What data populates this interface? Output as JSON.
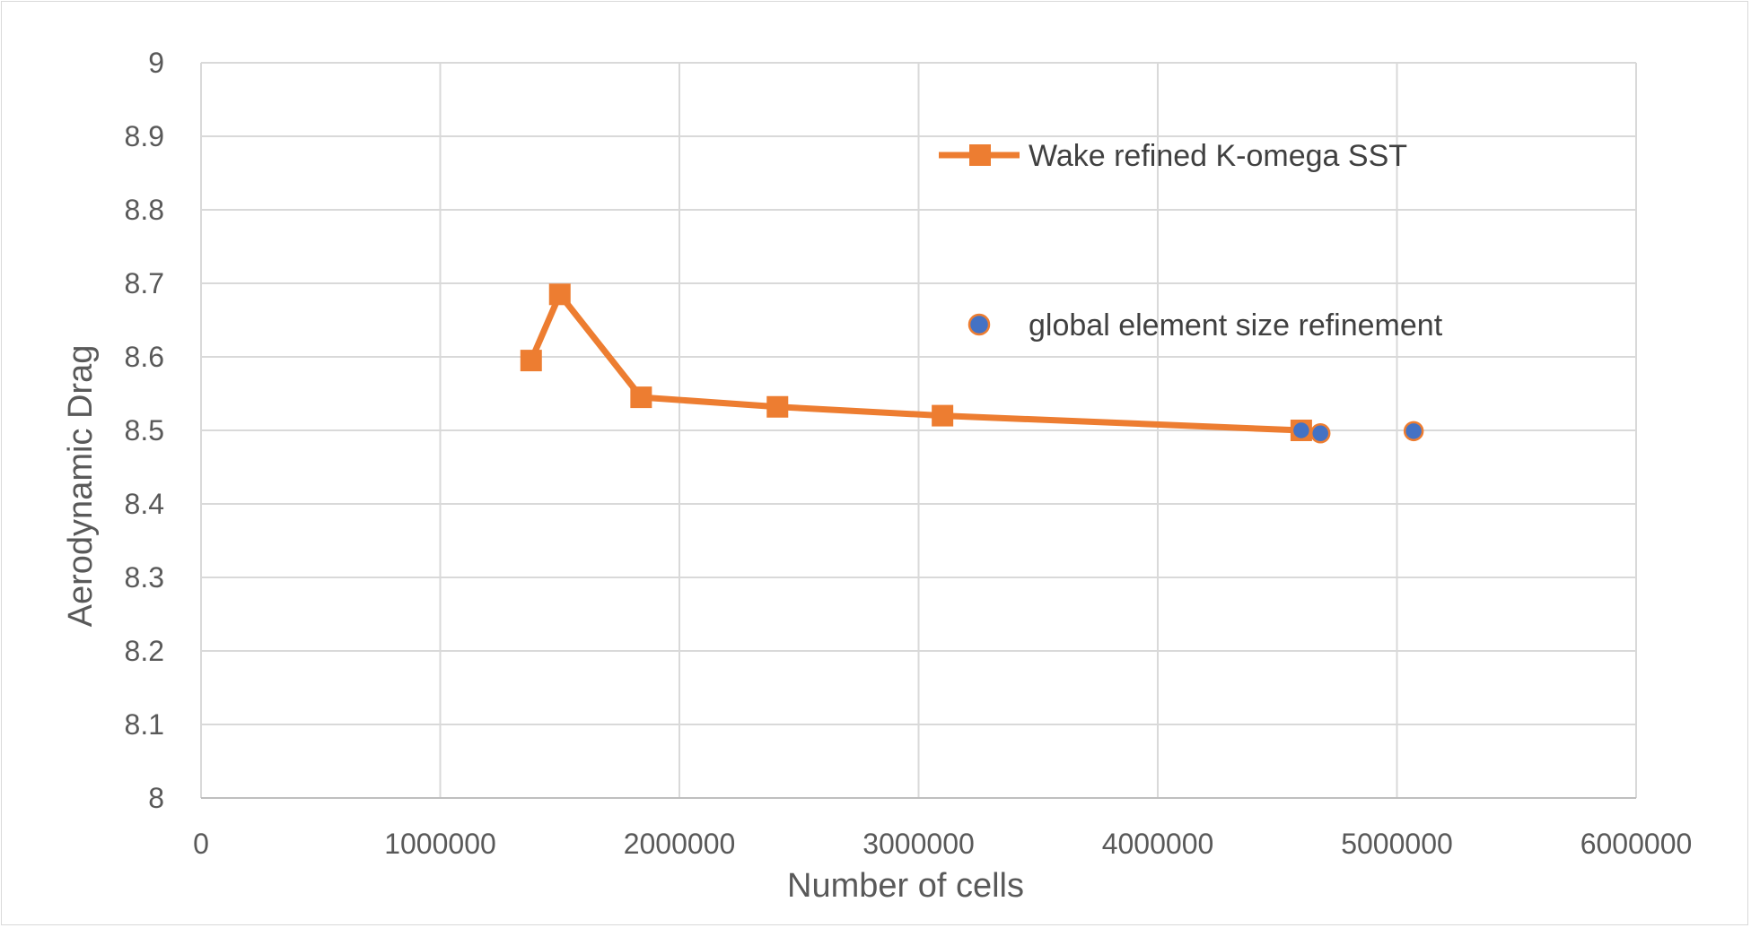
{
  "chart_data": {
    "type": "line",
    "title": "",
    "xlabel": "Number of cells",
    "ylabel": "Aerodynamic Drag",
    "xlim": [
      0,
      6000000
    ],
    "ylim": [
      8,
      9
    ],
    "x_ticks": [
      "0",
      "1000000",
      "2000000",
      "3000000",
      "4000000",
      "5000000",
      "6000000"
    ],
    "y_ticks": [
      "8",
      "8.1",
      "8.2",
      "8.3",
      "8.4",
      "8.5",
      "8.6",
      "8.7",
      "8.8",
      "8.9",
      "9"
    ],
    "grid": true,
    "legend_position": "top-right",
    "series": [
      {
        "name": "Wake refined K-omega SST",
        "style": "line-square-markers",
        "color": "#ed7d31",
        "x": [
          1380000,
          1500000,
          1840000,
          2410000,
          3100000,
          4600000
        ],
        "y": [
          8.595,
          8.685,
          8.545,
          8.532,
          8.52,
          8.5
        ]
      },
      {
        "name": "global element size refinement",
        "style": "markers-only-circle",
        "color": "#4472c4",
        "edge_color": "#ed7d31",
        "x": [
          4600000,
          4680000,
          5070000
        ],
        "y": [
          8.5,
          8.496,
          8.499
        ]
      }
    ]
  }
}
